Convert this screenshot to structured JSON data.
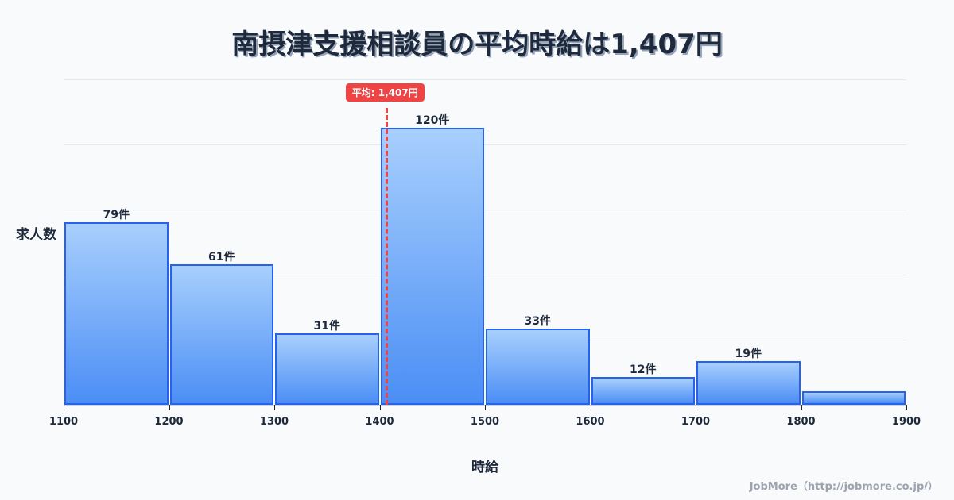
{
  "title": "南摂津支援相談員の平均時給は1,407円",
  "ylabel": "求人数",
  "xlabel": "時給",
  "credit": "JobMore（http://jobmore.co.jp/）",
  "mean": {
    "value": 1407,
    "label": "平均: 1,407円",
    "color": "#ef4444"
  },
  "colors": {
    "bar_border": "#2563eb",
    "bar_top": "#a8cffd",
    "bar_bottom": "#4b8ef5",
    "text": "#1e293b"
  },
  "chart_data": {
    "type": "bar",
    "title": "南摂津支援相談員の平均時給は1,407円",
    "xlabel": "時給",
    "ylabel": "求人数",
    "bins": [
      [
        1100,
        1200
      ],
      [
        1200,
        1300
      ],
      [
        1300,
        1400
      ],
      [
        1400,
        1500
      ],
      [
        1500,
        1600
      ],
      [
        1600,
        1700
      ],
      [
        1700,
        1800
      ],
      [
        1800,
        1900
      ]
    ],
    "categories": [
      "1100-1200",
      "1200-1300",
      "1300-1400",
      "1400-1500",
      "1500-1600",
      "1600-1700",
      "1700-1800",
      "1800-1900"
    ],
    "values": [
      79,
      61,
      31,
      120,
      33,
      12,
      19,
      6
    ],
    "value_labels": [
      "79件",
      "61件",
      "31件",
      "120件",
      "33件",
      "12件",
      "19件",
      ""
    ],
    "x_ticks": [
      "1100",
      "1200",
      "1300",
      "1400",
      "1500",
      "1600",
      "1700",
      "1800",
      "1900"
    ],
    "xlim": [
      1100,
      1900
    ],
    "ylim": [
      0,
      141
    ],
    "grid": true,
    "annotations": [
      {
        "type": "vline",
        "x": 1407,
        "label": "平均: 1,407円"
      }
    ]
  }
}
